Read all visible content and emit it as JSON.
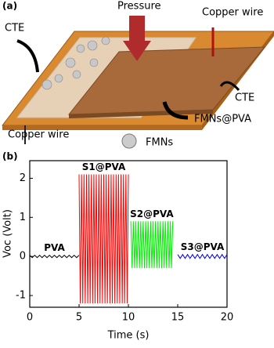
{
  "diagram": {
    "panel_label": "(a)",
    "labels": [
      "Pressure",
      "Copper wire",
      "CTE",
      "CTE",
      "Copper wire",
      "FMNs@PVA",
      "FMNs"
    ]
  },
  "chart_data": {
    "type": "line",
    "panel_label": "(b)",
    "x_label": "Time (s)",
    "y_label": "Voc (Volt)",
    "xlim": [
      0,
      20
    ],
    "xticks": [
      0,
      5,
      10,
      15,
      20
    ],
    "ylim": [
      -1.3,
      2.45
    ],
    "yticks": [
      -1,
      0,
      1,
      2
    ],
    "series": [
      {
        "name": "PVA",
        "color": "#000000",
        "x": [
          0,
          0.25,
          0.5,
          0.75,
          1,
          1.25,
          1.5,
          1.75,
          2,
          2.25,
          2.5,
          2.75,
          3,
          3.25,
          3.5,
          3.75,
          4,
          4.25,
          4.5,
          4.75,
          5
        ],
        "values": [
          0.03,
          -0.03,
          0.03,
          -0.03,
          0.03,
          -0.03,
          0.03,
          -0.03,
          0.03,
          -0.03,
          0.03,
          -0.03,
          0.03,
          -0.03,
          0.03,
          -0.03,
          0.03,
          -0.03,
          0.03,
          -0.03,
          0.03
        ]
      },
      {
        "name": "S1@PVA",
        "color": "#ff0000",
        "x": [
          5,
          5.125,
          5.25,
          5.375,
          5.5,
          5.625,
          5.75,
          5.875,
          6,
          6.125,
          6.25,
          6.375,
          6.5,
          6.625,
          6.75,
          6.875,
          7,
          7.125,
          7.25,
          7.375,
          7.5,
          7.625,
          7.75,
          7.875,
          8,
          8.125,
          8.25,
          8.375,
          8.5,
          8.625,
          8.75,
          8.875,
          9,
          9.125,
          9.25,
          9.375,
          9.5,
          9.625,
          9.75,
          9.875,
          10
        ],
        "values": [
          2.1,
          -1.2,
          2.1,
          -1.2,
          2.1,
          -1.2,
          2.1,
          -1.2,
          2.1,
          -1.2,
          2.1,
          -1.2,
          2.1,
          -1.2,
          2.1,
          -1.2,
          2.1,
          -1.2,
          2.1,
          -1.2,
          2.1,
          -1.2,
          2.1,
          -1.2,
          2.1,
          -1.2,
          2.1,
          -1.2,
          2.1,
          -1.2,
          2.1,
          -1.2,
          2.1,
          -1.2,
          2.1,
          -1.2,
          2.1,
          -1.2,
          2.1,
          -1.2,
          2.1
        ]
      },
      {
        "name": "S2@PVA",
        "color": "#00ee00",
        "x": [
          10.25,
          10.375,
          10.5,
          10.625,
          10.75,
          10.875,
          11,
          11.125,
          11.25,
          11.375,
          11.5,
          11.625,
          11.75,
          11.875,
          12,
          12.125,
          12.25,
          12.375,
          12.5,
          12.625,
          12.75,
          12.875,
          13,
          13.125,
          13.25,
          13.375,
          13.5,
          13.625,
          13.75,
          13.875,
          14,
          14.125,
          14.25,
          14.375,
          14.5
        ],
        "values": [
          0.9,
          -0.3,
          0.9,
          -0.3,
          0.9,
          -0.3,
          0.9,
          -0.3,
          0.9,
          -0.3,
          0.9,
          -0.3,
          0.9,
          -0.3,
          0.9,
          -0.3,
          0.9,
          -0.3,
          0.9,
          -0.3,
          0.9,
          -0.3,
          0.9,
          -0.3,
          0.9,
          -0.3,
          0.9,
          -0.3,
          0.9,
          -0.3,
          0.9,
          -0.3,
          0.9,
          -0.3,
          0.9
        ]
      },
      {
        "name": "S3@PVA",
        "color": "#0000ff",
        "x": [
          15,
          15.25,
          15.5,
          15.75,
          16,
          16.25,
          16.5,
          16.75,
          17,
          17.25,
          17.5,
          17.75,
          18,
          18.25,
          18.5,
          18.75,
          19,
          19.25,
          19.5,
          19.75,
          20
        ],
        "values": [
          0.05,
          -0.05,
          0.05,
          -0.05,
          0.05,
          -0.05,
          0.05,
          -0.05,
          0.05,
          -0.05,
          0.05,
          -0.05,
          0.05,
          -0.05,
          0.05,
          -0.05,
          0.05,
          -0.05,
          0.05,
          -0.05,
          0.05
        ]
      }
    ]
  }
}
